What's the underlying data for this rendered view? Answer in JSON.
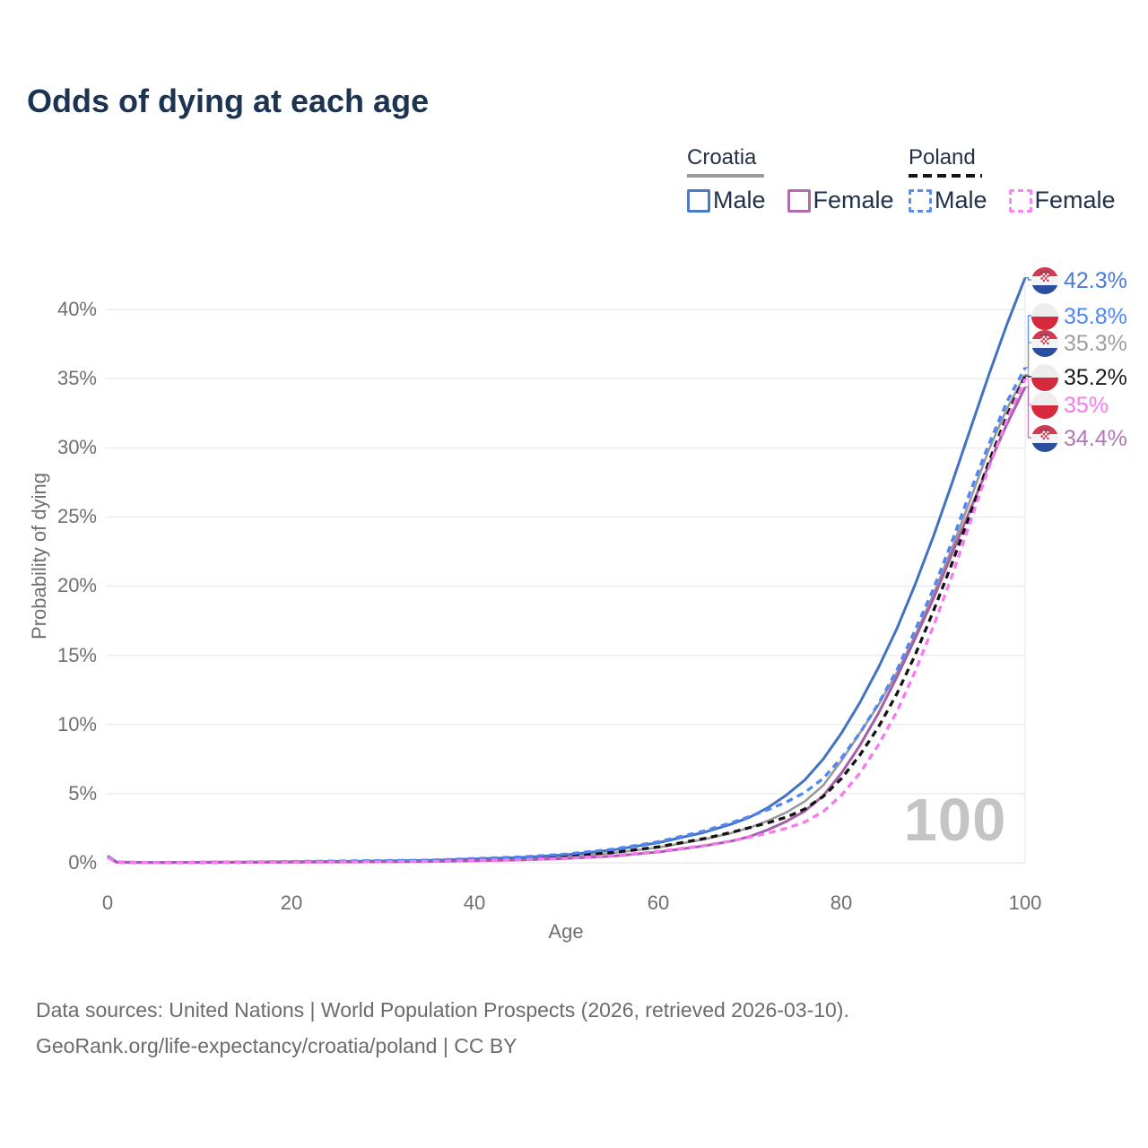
{
  "title": "Odds of dying at each age",
  "legend": {
    "groups": [
      {
        "country": "Croatia",
        "line_style": "solid",
        "underline_color": "#9a9a9a",
        "items": [
          {
            "label": "Male",
            "color": "#4a79c5"
          },
          {
            "label": "Female",
            "color": "#b06dad"
          }
        ]
      },
      {
        "country": "Poland",
        "line_style": "dashed",
        "underline_color": "#161616",
        "items": [
          {
            "label": "Male",
            "color": "#5a8cf0"
          },
          {
            "label": "Female",
            "color": "#fb84f5"
          }
        ]
      }
    ]
  },
  "chart_data": {
    "type": "line",
    "title": "Odds of dying at each age",
    "xlabel": "Age",
    "ylabel": "Probability of dying",
    "xlim": [
      0,
      100
    ],
    "ylim_percent": [
      0,
      42.3
    ],
    "grid": "horizontal",
    "legend_position": "top-right",
    "age_counter": "100",
    "xtick_labels": [
      "0",
      "20",
      "40",
      "60",
      "80",
      "100"
    ],
    "xtick_values": [
      0,
      20,
      40,
      60,
      80,
      100
    ],
    "ytick_labels": [
      "0%",
      "5%",
      "10%",
      "15%",
      "20%",
      "25%",
      "30%",
      "35%",
      "40%"
    ],
    "ytick_values": [
      0,
      5,
      10,
      15,
      20,
      25,
      30,
      35,
      40
    ],
    "ages": [
      0,
      1,
      5,
      15,
      25,
      35,
      45,
      50,
      55,
      60,
      65,
      68,
      70,
      72,
      74,
      76,
      78,
      80,
      82,
      84,
      86,
      88,
      90,
      92,
      94,
      96,
      98,
      100
    ],
    "series": [
      {
        "name": "Croatia Male",
        "country": "Croatia",
        "sex": "Male",
        "style": "solid",
        "color": "#4373c0",
        "label_color": "#4a7dd3",
        "end_label": "42.3%",
        "end_value_percent": 42.3,
        "values": [
          0.5,
          0.05,
          0.02,
          0.05,
          0.1,
          0.17,
          0.38,
          0.58,
          0.92,
          1.45,
          2.2,
          2.8,
          3.3,
          4.0,
          4.9,
          6.0,
          7.5,
          9.4,
          11.6,
          14.1,
          16.9,
          20.1,
          23.6,
          27.4,
          31.3,
          35.2,
          38.9,
          42.3
        ]
      },
      {
        "name": "Poland Male",
        "country": "Poland",
        "sex": "Male",
        "style": "dashed",
        "color": "#4f86f7",
        "label_color": "#4f86f7",
        "end_label": "35.8%",
        "end_value_percent": 35.8,
        "values": [
          0.45,
          0.05,
          0.02,
          0.06,
          0.12,
          0.19,
          0.42,
          0.63,
          0.98,
          1.52,
          2.3,
          2.9,
          3.35,
          3.85,
          4.4,
          5.1,
          6.1,
          7.6,
          9.4,
          11.5,
          13.9,
          16.8,
          19.8,
          23.2,
          26.8,
          30.2,
          33.3,
          35.8
        ]
      },
      {
        "name": "Croatia Both sexes",
        "country": "Croatia",
        "sex": "Both",
        "style": "solid",
        "color": "#9a9a9a",
        "label_color": "#9e9e9e",
        "end_label": "35.3%",
        "end_value_percent": 35.3,
        "values": [
          0.47,
          0.04,
          0.02,
          0.04,
          0.08,
          0.13,
          0.29,
          0.45,
          0.7,
          1.1,
          1.7,
          2.15,
          2.55,
          3.05,
          3.65,
          4.45,
          5.6,
          7.4,
          9.4,
          11.4,
          13.7,
          16.4,
          19.4,
          22.7,
          26.2,
          29.8,
          32.8,
          35.3
        ]
      },
      {
        "name": "Poland Both sexes",
        "country": "Poland",
        "sex": "Both",
        "style": "dashed",
        "color": "#141414",
        "label_color": "#1c1c1c",
        "end_label": "35.2%",
        "end_value_percent": 35.2,
        "values": [
          0.42,
          0.04,
          0.015,
          0.04,
          0.09,
          0.14,
          0.31,
          0.47,
          0.74,
          1.15,
          1.75,
          2.2,
          2.55,
          2.9,
          3.3,
          3.9,
          4.8,
          6.1,
          7.8,
          9.8,
          12.2,
          15.0,
          18.2,
          21.6,
          25.2,
          28.9,
          32.3,
          35.2
        ]
      },
      {
        "name": "Poland Female",
        "country": "Poland",
        "sex": "Female",
        "style": "dashed",
        "color": "#f878f2",
        "label_color": "#f878f2",
        "end_label": "35%",
        "end_value_percent": 35.0,
        "values": [
          0.38,
          0.03,
          0.012,
          0.03,
          0.06,
          0.1,
          0.22,
          0.33,
          0.52,
          0.82,
          1.25,
          1.58,
          1.85,
          2.15,
          2.5,
          2.95,
          3.7,
          4.9,
          6.5,
          8.5,
          10.9,
          13.8,
          17.1,
          20.7,
          24.6,
          28.5,
          32.0,
          35.0
        ]
      },
      {
        "name": "Croatia Female",
        "country": "Croatia",
        "sex": "Female",
        "style": "solid",
        "color": "#a55fa6",
        "label_color": "#b077b7",
        "end_label": "34.4%",
        "end_value_percent": 34.4,
        "values": [
          0.4,
          0.03,
          0.013,
          0.03,
          0.06,
          0.09,
          0.2,
          0.31,
          0.48,
          0.78,
          1.22,
          1.57,
          1.9,
          2.4,
          3.0,
          3.75,
          4.85,
          6.5,
          8.5,
          10.8,
          13.4,
          16.2,
          19.1,
          22.3,
          25.5,
          28.7,
          31.7,
          34.4
        ]
      }
    ]
  },
  "footer": {
    "line1": "Data sources: United Nations | World Population Prospects (2026, retrieved 2026-03-10).",
    "line2": "GeoRank.org/life-expectancy/croatia/poland | CC BY"
  }
}
